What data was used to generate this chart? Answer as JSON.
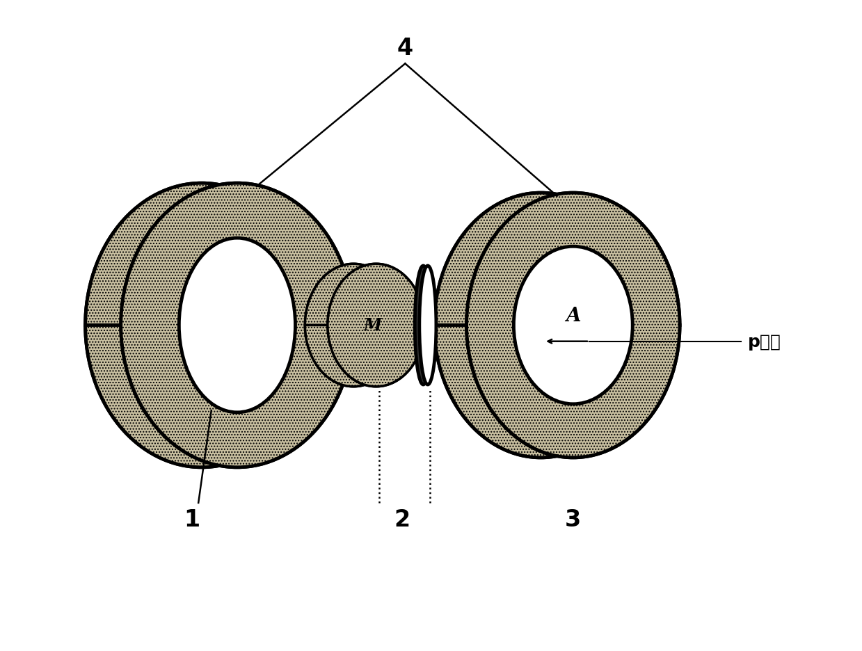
{
  "bg_color": "#ffffff",
  "label_1": "1",
  "label_2": "2",
  "label_3": "3",
  "label_4": "4",
  "label_M": "M",
  "label_A": "A",
  "label_pion": "p离子",
  "face_color": "#c8bfa0",
  "edge_color": "#000000",
  "figsize": [
    12.39,
    9.37
  ],
  "dpi": 100
}
